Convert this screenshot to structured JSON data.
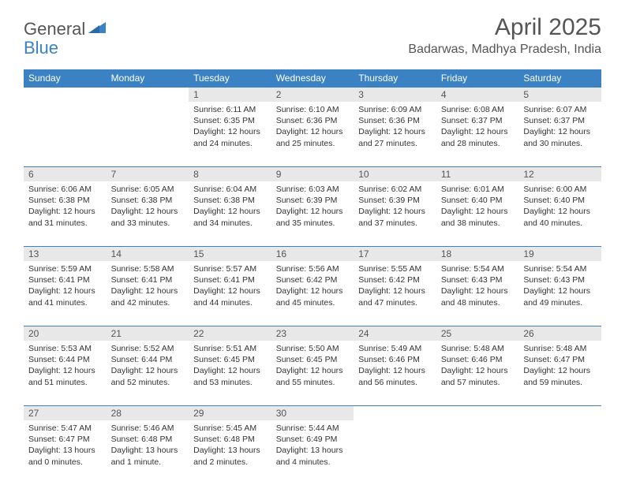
{
  "logo": {
    "general": "General",
    "blue": "Blue"
  },
  "title": "April 2025",
  "location": "Badarwas, Madhya Pradesh, India",
  "colors": {
    "header_bg": "#3b82c4",
    "header_text": "#ffffff",
    "daynum_bg": "#e8e8e8",
    "page_bg": "#ffffff",
    "text": "#333333",
    "title_text": "#555555"
  },
  "days_of_week": [
    "Sunday",
    "Monday",
    "Tuesday",
    "Wednesday",
    "Thursday",
    "Friday",
    "Saturday"
  ],
  "weeks": [
    [
      null,
      null,
      {
        "n": "1",
        "sr": "6:11 AM",
        "ss": "6:35 PM",
        "dl": "12 hours and 24 minutes."
      },
      {
        "n": "2",
        "sr": "6:10 AM",
        "ss": "6:36 PM",
        "dl": "12 hours and 25 minutes."
      },
      {
        "n": "3",
        "sr": "6:09 AM",
        "ss": "6:36 PM",
        "dl": "12 hours and 27 minutes."
      },
      {
        "n": "4",
        "sr": "6:08 AM",
        "ss": "6:37 PM",
        "dl": "12 hours and 28 minutes."
      },
      {
        "n": "5",
        "sr": "6:07 AM",
        "ss": "6:37 PM",
        "dl": "12 hours and 30 minutes."
      }
    ],
    [
      {
        "n": "6",
        "sr": "6:06 AM",
        "ss": "6:38 PM",
        "dl": "12 hours and 31 minutes."
      },
      {
        "n": "7",
        "sr": "6:05 AM",
        "ss": "6:38 PM",
        "dl": "12 hours and 33 minutes."
      },
      {
        "n": "8",
        "sr": "6:04 AM",
        "ss": "6:38 PM",
        "dl": "12 hours and 34 minutes."
      },
      {
        "n": "9",
        "sr": "6:03 AM",
        "ss": "6:39 PM",
        "dl": "12 hours and 35 minutes."
      },
      {
        "n": "10",
        "sr": "6:02 AM",
        "ss": "6:39 PM",
        "dl": "12 hours and 37 minutes."
      },
      {
        "n": "11",
        "sr": "6:01 AM",
        "ss": "6:40 PM",
        "dl": "12 hours and 38 minutes."
      },
      {
        "n": "12",
        "sr": "6:00 AM",
        "ss": "6:40 PM",
        "dl": "12 hours and 40 minutes."
      }
    ],
    [
      {
        "n": "13",
        "sr": "5:59 AM",
        "ss": "6:41 PM",
        "dl": "12 hours and 41 minutes."
      },
      {
        "n": "14",
        "sr": "5:58 AM",
        "ss": "6:41 PM",
        "dl": "12 hours and 42 minutes."
      },
      {
        "n": "15",
        "sr": "5:57 AM",
        "ss": "6:41 PM",
        "dl": "12 hours and 44 minutes."
      },
      {
        "n": "16",
        "sr": "5:56 AM",
        "ss": "6:42 PM",
        "dl": "12 hours and 45 minutes."
      },
      {
        "n": "17",
        "sr": "5:55 AM",
        "ss": "6:42 PM",
        "dl": "12 hours and 47 minutes."
      },
      {
        "n": "18",
        "sr": "5:54 AM",
        "ss": "6:43 PM",
        "dl": "12 hours and 48 minutes."
      },
      {
        "n": "19",
        "sr": "5:54 AM",
        "ss": "6:43 PM",
        "dl": "12 hours and 49 minutes."
      }
    ],
    [
      {
        "n": "20",
        "sr": "5:53 AM",
        "ss": "6:44 PM",
        "dl": "12 hours and 51 minutes."
      },
      {
        "n": "21",
        "sr": "5:52 AM",
        "ss": "6:44 PM",
        "dl": "12 hours and 52 minutes."
      },
      {
        "n": "22",
        "sr": "5:51 AM",
        "ss": "6:45 PM",
        "dl": "12 hours and 53 minutes."
      },
      {
        "n": "23",
        "sr": "5:50 AM",
        "ss": "6:45 PM",
        "dl": "12 hours and 55 minutes."
      },
      {
        "n": "24",
        "sr": "5:49 AM",
        "ss": "6:46 PM",
        "dl": "12 hours and 56 minutes."
      },
      {
        "n": "25",
        "sr": "5:48 AM",
        "ss": "6:46 PM",
        "dl": "12 hours and 57 minutes."
      },
      {
        "n": "26",
        "sr": "5:48 AM",
        "ss": "6:47 PM",
        "dl": "12 hours and 59 minutes."
      }
    ],
    [
      {
        "n": "27",
        "sr": "5:47 AM",
        "ss": "6:47 PM",
        "dl": "13 hours and 0 minutes."
      },
      {
        "n": "28",
        "sr": "5:46 AM",
        "ss": "6:48 PM",
        "dl": "13 hours and 1 minute."
      },
      {
        "n": "29",
        "sr": "5:45 AM",
        "ss": "6:48 PM",
        "dl": "13 hours and 2 minutes."
      },
      {
        "n": "30",
        "sr": "5:44 AM",
        "ss": "6:49 PM",
        "dl": "13 hours and 4 minutes."
      },
      null,
      null,
      null
    ]
  ],
  "labels": {
    "sunrise": "Sunrise:",
    "sunset": "Sunset:",
    "daylight": "Daylight:"
  }
}
